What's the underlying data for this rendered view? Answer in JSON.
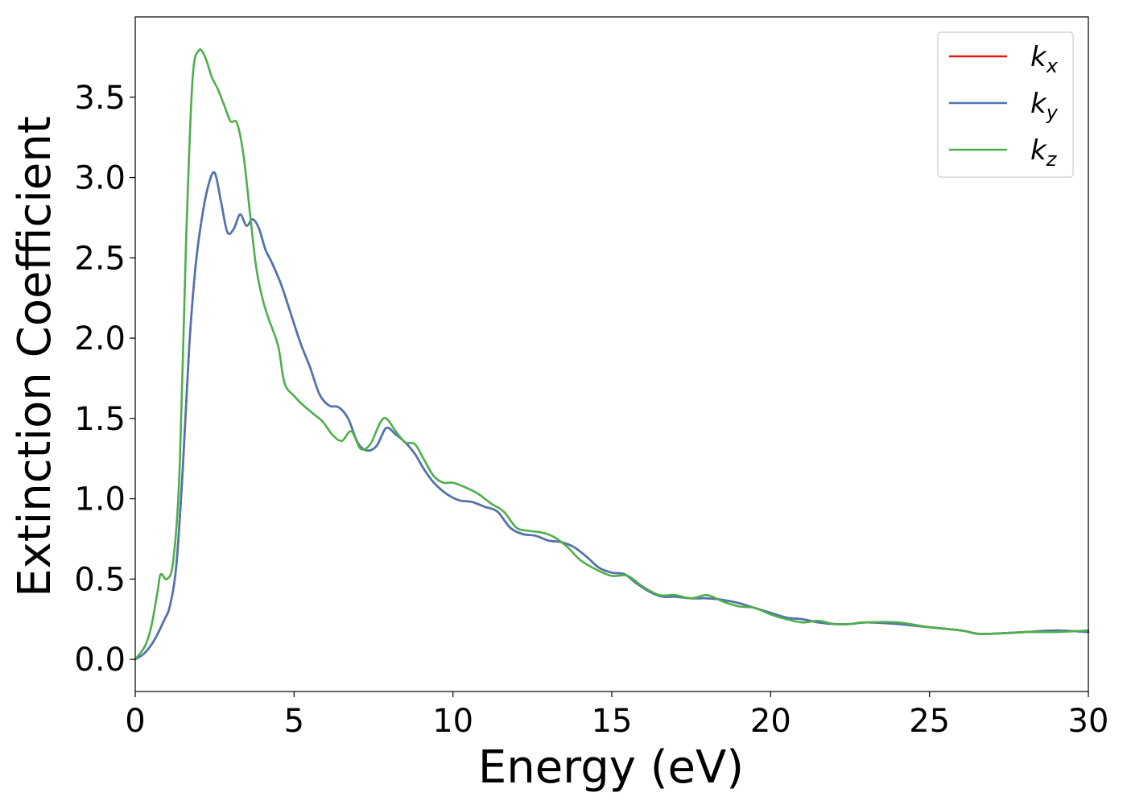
{
  "chart_data": {
    "type": "line",
    "xlabel": "Energy (eV)",
    "ylabel": "Extinction Coefficient",
    "xlim": [
      0,
      30
    ],
    "ylim": [
      -0.2,
      4.0
    ],
    "xticks": [
      0,
      5,
      10,
      15,
      20,
      25,
      30
    ],
    "yticks": [
      0.0,
      0.5,
      1.0,
      1.5,
      2.0,
      2.5,
      3.0,
      3.5
    ],
    "xtick_labels": [
      "0",
      "5",
      "10",
      "15",
      "20",
      "25",
      "30"
    ],
    "ytick_labels": [
      "0.0",
      "0.5",
      "1.0",
      "1.5",
      "2.0",
      "2.5",
      "3.0",
      "3.5"
    ],
    "grid": false,
    "legend_position": "top-right",
    "series": [
      {
        "name": "k_x",
        "legend_base": "k",
        "legend_sub": "x",
        "color": "#e41a1c",
        "x": [
          0,
          0.3,
          0.6,
          0.9,
          1.1,
          1.3,
          1.5,
          1.7,
          1.9,
          2.1,
          2.3,
          2.5,
          2.7,
          2.9,
          3.1,
          3.3,
          3.5,
          3.7,
          3.9,
          4.1,
          4.3,
          4.6,
          4.9,
          5.2,
          5.5,
          5.8,
          6.1,
          6.4,
          6.7,
          7.0,
          7.3,
          7.6,
          7.9,
          8.2,
          8.5,
          8.8,
          9.1,
          9.4,
          9.8,
          10.2,
          10.6,
          11.0,
          11.4,
          11.8,
          12.2,
          12.6,
          13.0,
          13.4,
          13.8,
          14.2,
          14.6,
          15.0,
          15.4,
          15.8,
          16.2,
          16.6,
          17.0,
          17.5,
          18.0,
          18.5,
          19.0,
          19.5,
          20.0,
          20.5,
          21.0,
          21.5,
          22.0,
          22.5,
          23.0,
          24.0,
          25.0,
          26.0,
          26.5,
          27.0,
          28.0,
          29.0,
          30.0
        ],
        "values": [
          0.0,
          0.04,
          0.12,
          0.24,
          0.34,
          0.6,
          1.2,
          1.95,
          2.45,
          2.75,
          2.95,
          3.03,
          2.85,
          2.66,
          2.68,
          2.77,
          2.7,
          2.74,
          2.68,
          2.55,
          2.47,
          2.33,
          2.15,
          1.97,
          1.82,
          1.65,
          1.58,
          1.57,
          1.5,
          1.35,
          1.3,
          1.33,
          1.44,
          1.4,
          1.35,
          1.28,
          1.18,
          1.1,
          1.03,
          0.99,
          0.98,
          0.95,
          0.92,
          0.82,
          0.78,
          0.77,
          0.74,
          0.73,
          0.7,
          0.64,
          0.57,
          0.54,
          0.53,
          0.47,
          0.42,
          0.39,
          0.39,
          0.38,
          0.38,
          0.37,
          0.35,
          0.32,
          0.29,
          0.26,
          0.25,
          0.23,
          0.22,
          0.22,
          0.23,
          0.22,
          0.2,
          0.18,
          0.16,
          0.16,
          0.17,
          0.18,
          0.17
        ]
      },
      {
        "name": "k_y",
        "legend_base": "k",
        "legend_sub": "y",
        "color": "#4a76b2",
        "x": [
          0,
          0.3,
          0.6,
          0.9,
          1.1,
          1.3,
          1.5,
          1.7,
          1.9,
          2.1,
          2.3,
          2.5,
          2.7,
          2.9,
          3.1,
          3.3,
          3.5,
          3.7,
          3.9,
          4.1,
          4.3,
          4.6,
          4.9,
          5.2,
          5.5,
          5.8,
          6.1,
          6.4,
          6.7,
          7.0,
          7.3,
          7.6,
          7.9,
          8.2,
          8.5,
          8.8,
          9.1,
          9.4,
          9.8,
          10.2,
          10.6,
          11.0,
          11.4,
          11.8,
          12.2,
          12.6,
          13.0,
          13.4,
          13.8,
          14.2,
          14.6,
          15.0,
          15.4,
          15.8,
          16.2,
          16.6,
          17.0,
          17.5,
          18.0,
          18.5,
          19.0,
          19.5,
          20.0,
          20.5,
          21.0,
          21.5,
          22.0,
          22.5,
          23.0,
          24.0,
          25.0,
          26.0,
          26.5,
          27.0,
          28.0,
          29.0,
          30.0
        ],
        "values": [
          0.0,
          0.04,
          0.12,
          0.24,
          0.34,
          0.6,
          1.2,
          1.95,
          2.45,
          2.75,
          2.95,
          3.03,
          2.85,
          2.66,
          2.68,
          2.77,
          2.7,
          2.74,
          2.68,
          2.55,
          2.47,
          2.33,
          2.15,
          1.97,
          1.82,
          1.65,
          1.58,
          1.57,
          1.5,
          1.35,
          1.3,
          1.33,
          1.44,
          1.4,
          1.35,
          1.28,
          1.18,
          1.1,
          1.03,
          0.99,
          0.98,
          0.95,
          0.92,
          0.82,
          0.78,
          0.77,
          0.74,
          0.73,
          0.7,
          0.64,
          0.57,
          0.54,
          0.53,
          0.47,
          0.42,
          0.39,
          0.39,
          0.38,
          0.38,
          0.37,
          0.35,
          0.32,
          0.29,
          0.26,
          0.25,
          0.23,
          0.22,
          0.22,
          0.23,
          0.22,
          0.2,
          0.18,
          0.16,
          0.16,
          0.17,
          0.18,
          0.17
        ]
      },
      {
        "name": "k_z",
        "legend_base": "k",
        "legend_sub": "z",
        "color": "#4daf4a",
        "x": [
          0,
          0.3,
          0.5,
          0.7,
          0.8,
          1.0,
          1.2,
          1.4,
          1.6,
          1.8,
          2.0,
          2.2,
          2.4,
          2.6,
          2.8,
          3.0,
          3.2,
          3.4,
          3.6,
          3.8,
          4.0,
          4.2,
          4.5,
          4.7,
          5.0,
          5.3,
          5.6,
          5.9,
          6.2,
          6.5,
          6.8,
          7.1,
          7.4,
          7.7,
          7.9,
          8.2,
          8.5,
          8.8,
          9.1,
          9.4,
          9.7,
          10.0,
          10.4,
          10.8,
          11.2,
          11.6,
          12.0,
          12.4,
          12.8,
          13.2,
          13.6,
          14.0,
          14.5,
          15.0,
          15.5,
          16.0,
          16.5,
          17.0,
          17.5,
          18.0,
          18.5,
          19.0,
          19.5,
          20.0,
          20.5,
          21.0,
          21.5,
          22.0,
          22.5,
          23.0,
          24.0,
          25.0,
          26.0,
          26.5,
          27.0,
          28.0,
          29.0,
          30.0
        ],
        "values": [
          0.0,
          0.08,
          0.2,
          0.42,
          0.53,
          0.5,
          0.62,
          1.2,
          2.6,
          3.6,
          3.79,
          3.75,
          3.63,
          3.55,
          3.45,
          3.35,
          3.34,
          3.15,
          2.8,
          2.45,
          2.25,
          2.12,
          1.95,
          1.72,
          1.64,
          1.58,
          1.53,
          1.48,
          1.4,
          1.36,
          1.42,
          1.31,
          1.34,
          1.47,
          1.5,
          1.42,
          1.35,
          1.34,
          1.24,
          1.14,
          1.1,
          1.1,
          1.07,
          1.03,
          0.97,
          0.92,
          0.82,
          0.8,
          0.79,
          0.76,
          0.7,
          0.62,
          0.56,
          0.52,
          0.52,
          0.45,
          0.4,
          0.4,
          0.38,
          0.4,
          0.36,
          0.33,
          0.32,
          0.28,
          0.25,
          0.23,
          0.24,
          0.22,
          0.22,
          0.23,
          0.23,
          0.2,
          0.18,
          0.16,
          0.16,
          0.17,
          0.17,
          0.18
        ]
      }
    ]
  }
}
